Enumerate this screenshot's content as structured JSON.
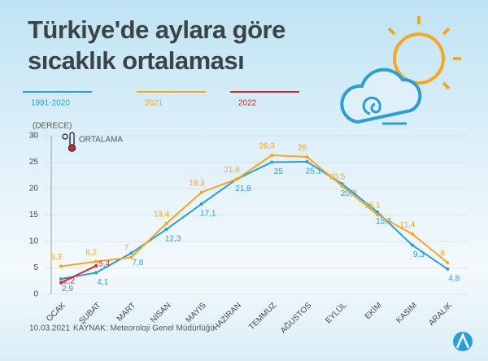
{
  "chart_data": {
    "type": "line",
    "title": "Türkiye'de aylara göre sıcaklık ortalaması",
    "y_axis_label": "(DERECE)",
    "annotation": "ORTALAMA",
    "categories": [
      "OCAK",
      "ŞUBAT",
      "MART",
      "NİSAN",
      "MAYIS",
      "HAZİRAN",
      "TEMMUZ",
      "AĞUSTOS",
      "EYLÜL",
      "EKİM",
      "KASIM",
      "ARALIK"
    ],
    "series": [
      {
        "name": "1991-2020",
        "color": "#2a9fd6",
        "values": [
          2.9,
          4.1,
          7.8,
          12.3,
          17.1,
          21.8,
          25,
          25.1,
          20.9,
          15.6,
          9.3,
          4.8
        ],
        "value_labels": [
          "2,9",
          "4,1",
          "7,8",
          "12,3",
          "17,1",
          "21,8",
          "25",
          "25,1",
          "20,9",
          "15,6",
          "9,3",
          "4,8"
        ]
      },
      {
        "name": "2021",
        "color": "#f5a623",
        "values": [
          5.3,
          6.2,
          7,
          13.4,
          19.3,
          21.8,
          26.3,
          26,
          20.5,
          15.1,
          11.4,
          6
        ],
        "value_labels": [
          "5,3",
          "6,2",
          "7",
          "13,4",
          "19,3",
          "21,8",
          "26,3",
          "26",
          "20,5",
          "15,1",
          "11,4",
          "6"
        ]
      },
      {
        "name": "2022",
        "color": "#d9262c",
        "values": [
          2.2,
          5.4,
          null,
          null,
          null,
          null,
          null,
          null,
          null,
          null,
          null,
          null
        ],
        "value_labels": [
          "2,2",
          "5,4",
          null,
          null,
          null,
          null,
          null,
          null,
          null,
          null,
          null,
          null
        ]
      }
    ],
    "ylim": [
      0,
      30
    ],
    "yticks": [
      0,
      5,
      10,
      15,
      20,
      25,
      30
    ],
    "grid": true,
    "date": "10.03.2021",
    "source": "KAYNAK: Meteoroloji Genel Müdürlüğü"
  }
}
